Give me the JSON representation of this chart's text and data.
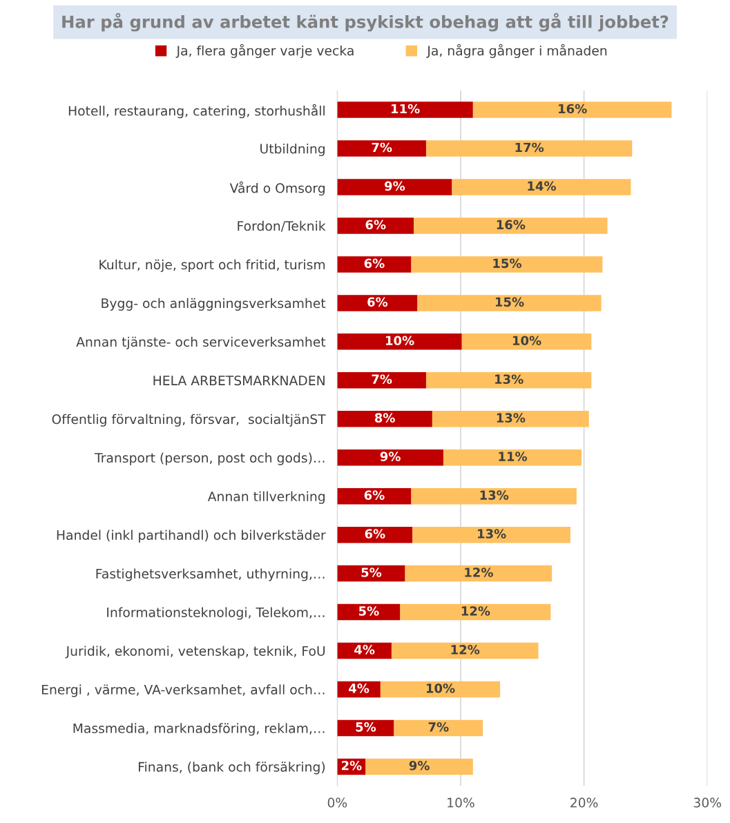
{
  "chart_data": {
    "type": "bar",
    "orientation": "horizontal",
    "stacked": true,
    "title": "Har på grund av arbetet känt psykiskt obehag att gå till jobbet?",
    "categories": [
      "Hotell, restaurang, catering, storhushåll",
      "Utbildning",
      "Vård o Omsorg",
      "Fordon/Teknik",
      "Kultur, nöje, sport och fritid, turism",
      "Bygg- och anläggningsverksamhet",
      "Annan tjänste- och serviceverksamhet",
      "HELA ARBETSMARKNADEN",
      "Offentlig förvaltning, försvar,  socialtjänST",
      "Transport (person, post och gods)…",
      "Annan tillverkning",
      "Handel (inkl partihandl) och bilverkstäder",
      "Fastighetsverksamhet, uthyrning,…",
      "Informationsteknologi, Telekom,…",
      "Juridik, ekonomi, vetenskap, teknik, FoU",
      "Energi , värme, VA-verksamhet, avfall och…",
      "Massmedia, marknadsföring, reklam,…",
      "Finans, (bank och försäkring)"
    ],
    "series": [
      {
        "name": "Ja, flera gånger varje vecka",
        "color": "#c00000",
        "values": [
          11.0,
          7.2,
          9.3,
          6.2,
          6.0,
          6.5,
          10.1,
          7.2,
          7.7,
          8.6,
          6.0,
          6.1,
          5.5,
          5.1,
          4.4,
          3.5,
          4.6,
          2.3
        ],
        "value_labels": [
          "11%",
          "7%",
          "9%",
          "6%",
          "6%",
          "6%",
          "10%",
          "7%",
          "8%",
          "9%",
          "6%",
          "6%",
          "5%",
          "5%",
          "4%",
          "4%",
          "5%",
          "2%"
        ]
      },
      {
        "name": "Ja, några gånger i månaden",
        "color": "#ffc05f",
        "values": [
          16.1,
          16.7,
          14.5,
          15.7,
          15.5,
          14.9,
          10.5,
          13.4,
          12.7,
          11.2,
          13.4,
          12.8,
          11.9,
          12.2,
          11.9,
          9.7,
          7.2,
          8.7
        ],
        "value_labels": [
          "16%",
          "17%",
          "14%",
          "16%",
          "15%",
          "15%",
          "10%",
          "13%",
          "13%",
          "11%",
          "13%",
          "13%",
          "12%",
          "12%",
          "12%",
          "10%",
          "7%",
          "9%"
        ]
      }
    ],
    "xlim": [
      0,
      30
    ],
    "xticks": [
      {
        "value": 0,
        "label": "0%"
      },
      {
        "value": 10,
        "label": "10%"
      },
      {
        "value": 20,
        "label": "20%"
      },
      {
        "value": 30,
        "label": "30%"
      }
    ],
    "grid": "x",
    "legend": "top"
  }
}
